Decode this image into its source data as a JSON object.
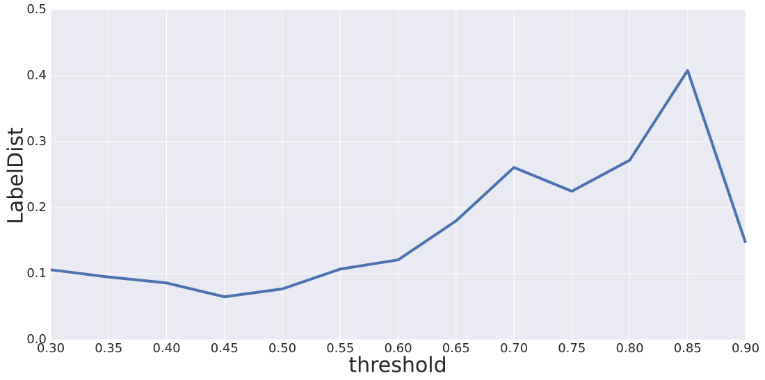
{
  "chart_data": {
    "type": "line",
    "x_label": "threshold",
    "y_label": "LabelDist",
    "x": [
      0.3,
      0.35,
      0.4,
      0.45,
      0.5,
      0.55,
      0.6,
      0.65,
      0.7,
      0.75,
      0.8,
      0.85,
      0.9
    ],
    "series": [
      {
        "name": "LabelDist",
        "color": "#4c72b0",
        "values": [
          0.106,
          0.095,
          0.086,
          0.065,
          0.077,
          0.107,
          0.121,
          0.18,
          0.261,
          0.225,
          0.272,
          0.408,
          0.147
        ]
      }
    ],
    "xlim": [
      0.3,
      0.9
    ],
    "ylim": [
      0,
      0.5
    ],
    "xticks": [
      {
        "value": 0.3,
        "label": "0.30"
      },
      0.35,
      {
        "value": 0.4,
        "label": "0.40"
      },
      0.45,
      {
        "value": 0.5,
        "label": "0.50"
      },
      0.55,
      {
        "value": 0.6,
        "label": "0.60"
      },
      0.65,
      {
        "value": 0.7,
        "label": "0.70"
      },
      0.75,
      {
        "value": 0.8,
        "label": "0.80"
      },
      0.85,
      {
        "value": 0.9,
        "label": "0.90"
      }
    ],
    "yticks": [
      {
        "value": 0,
        "label": "0.0"
      },
      0.1,
      0.2,
      0.3,
      0.4,
      {
        "value": 0.5,
        "label": "0.5"
      }
    ],
    "grid": true,
    "background": "#eaeaf2"
  }
}
